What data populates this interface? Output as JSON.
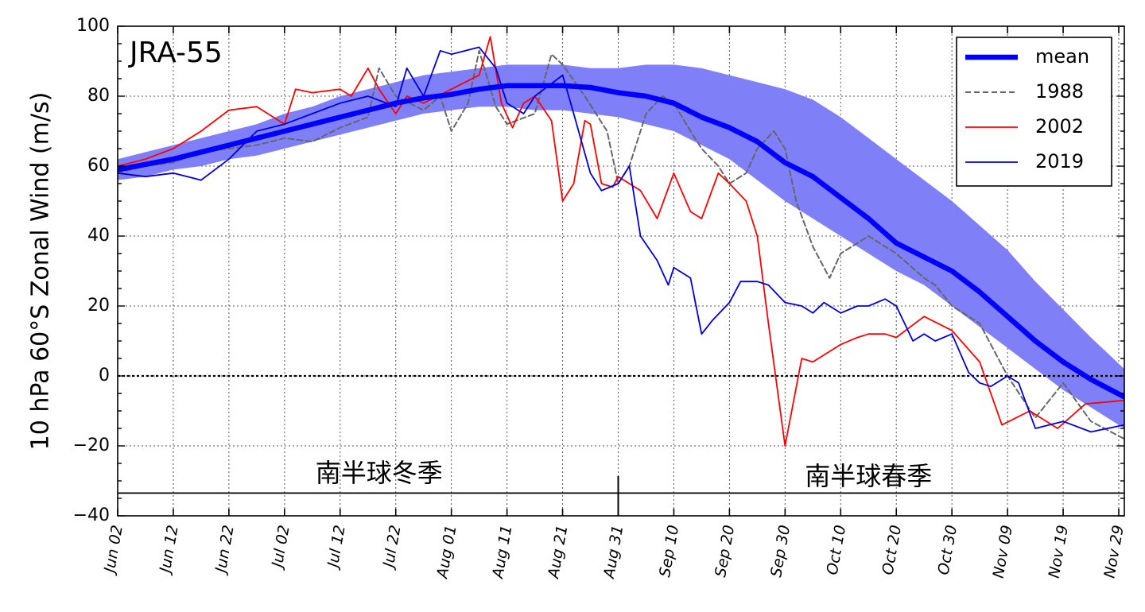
{
  "chart_data": {
    "type": "line",
    "title": "",
    "panel_label": "JRA-55",
    "ylabel": "10 hPa 60°S Zonal Wind (m/s)",
    "xlabel": "",
    "x_unit": "day_of_year_from_Jun_01",
    "xlim": [
      1,
      182
    ],
    "ylim": [
      -40,
      100
    ],
    "y_ticks": [
      -40,
      -20,
      0,
      20,
      40,
      60,
      80,
      100
    ],
    "y_tick_labels": [
      "−40",
      "−20",
      "0",
      "20",
      "40",
      "60",
      "80",
      "100"
    ],
    "x_ticks": [
      1,
      11,
      21,
      31,
      41,
      51,
      61,
      71,
      81,
      91,
      101,
      111,
      121,
      131,
      141,
      151,
      161,
      171,
      181
    ],
    "x_tick_labels": [
      "Jun 02",
      "Jun 12",
      "Jun 22",
      "Jul 02",
      "Jul 12",
      "Jul 22",
      "Aug 01",
      "Aug 11",
      "Aug 21",
      "Aug 31",
      "Sep 10",
      "Sep 20",
      "Sep 30",
      "Oct 10",
      "Oct 20",
      "Oct 30",
      "Nov 09",
      "Nov 19",
      "Nov 29"
    ],
    "grid": true,
    "zero_line": true,
    "legend": {
      "placement": "top-right"
    },
    "season_labels": {
      "winter": "南半球冬季",
      "spring": "南半球春季",
      "winter_x": 48,
      "spring_x": 136,
      "divider_x": 91,
      "bar_y": -33.5
    },
    "band": {
      "color": "#7f7ff8",
      "x": [
        1,
        6,
        11,
        16,
        21,
        26,
        31,
        36,
        41,
        46,
        51,
        56,
        61,
        66,
        71,
        76,
        81,
        86,
        91,
        96,
        101,
        106,
        111,
        116,
        121,
        126,
        131,
        136,
        141,
        146,
        151,
        156,
        161,
        166,
        171,
        176,
        182
      ],
      "lower": [
        56,
        57,
        59,
        60,
        62,
        63,
        65,
        67,
        69,
        71,
        73,
        75,
        76,
        77,
        77,
        76,
        76,
        75,
        74,
        72,
        70,
        66,
        62,
        56,
        50,
        45,
        40,
        35,
        30,
        26,
        20,
        14,
        8,
        2,
        -4,
        -9,
        -15
      ],
      "upper": [
        62,
        64,
        66,
        68,
        70,
        72,
        75,
        77,
        80,
        82,
        84,
        86,
        87,
        88,
        89,
        89,
        89,
        88,
        88,
        89,
        89,
        88,
        86,
        84,
        82,
        79,
        74,
        68,
        62,
        56,
        50,
        43,
        36,
        27,
        19,
        11,
        2
      ]
    },
    "series": [
      {
        "name": "mean",
        "color": "#0000ff",
        "style": "thick",
        "x": [
          1,
          6,
          11,
          16,
          21,
          26,
          31,
          36,
          41,
          46,
          51,
          56,
          61,
          66,
          71,
          76,
          81,
          86,
          91,
          96,
          101,
          106,
          111,
          116,
          121,
          126,
          131,
          136,
          141,
          146,
          151,
          156,
          161,
          166,
          171,
          176,
          182
        ],
        "y": [
          59,
          60.5,
          62,
          64,
          66,
          68,
          70,
          72,
          74,
          76,
          78,
          79.5,
          80.5,
          82,
          83,
          83,
          83,
          82.5,
          81,
          80,
          78,
          74,
          71,
          67,
          61,
          57,
          51,
          45,
          38,
          34,
          30,
          24,
          17,
          10,
          4,
          -1,
          -6
        ]
      },
      {
        "name": "1988",
        "color": "#666666",
        "style": "dashed",
        "x": [
          1,
          6,
          11,
          16,
          21,
          26,
          31,
          36,
          41,
          46,
          48,
          51,
          56,
          59,
          61,
          64,
          66,
          69,
          71,
          76,
          79,
          81,
          85,
          89,
          91,
          93,
          96,
          99,
          101,
          104,
          106,
          109,
          111,
          114,
          116,
          119,
          121,
          123,
          126,
          129,
          131,
          136,
          141,
          146,
          148,
          151,
          156,
          161,
          166,
          171,
          176,
          182
        ],
        "y": [
          58,
          60,
          61,
          64,
          65,
          66,
          68,
          67,
          71,
          74,
          88,
          80,
          76,
          80,
          70,
          78,
          93,
          77,
          72,
          75,
          92,
          89,
          80,
          70,
          55,
          60,
          75,
          80,
          78,
          70,
          65,
          60,
          55,
          58,
          65,
          70,
          65,
          50,
          37,
          28,
          35,
          40,
          35,
          28,
          26,
          20,
          15,
          0,
          -12,
          -2,
          -13,
          -18
        ]
      },
      {
        "name": "2002",
        "color": "#ff0000",
        "style": "solid",
        "x": [
          1,
          6,
          11,
          16,
          21,
          26,
          31,
          33,
          36,
          41,
          43,
          46,
          48,
          51,
          53,
          56,
          61,
          66,
          68,
          70,
          72,
          74,
          76,
          79,
          81,
          83,
          85,
          86,
          88,
          90,
          91,
          93,
          95,
          98,
          101,
          104,
          106,
          109,
          111,
          114,
          116,
          118,
          121,
          124,
          126,
          128,
          131,
          134,
          136,
          139,
          141,
          146,
          151,
          156,
          160,
          165,
          170,
          175,
          182
        ],
        "y": [
          60,
          62,
          65,
          70,
          76,
          77,
          72,
          82,
          81,
          82,
          80,
          88,
          82,
          75,
          80,
          78,
          82,
          86,
          97,
          78,
          71,
          78,
          80,
          73,
          50,
          55,
          73,
          72,
          55,
          54,
          57,
          55,
          53,
          45,
          58,
          47,
          45,
          58,
          55,
          50,
          40,
          15,
          -20,
          5,
          4,
          6,
          9,
          11,
          12,
          12,
          11,
          17,
          13,
          4,
          -14,
          -10,
          -15,
          -8,
          -7
        ]
      },
      {
        "name": "2019",
        "color": "#0000dd",
        "style": "solid",
        "x": [
          1,
          6,
          11,
          16,
          21,
          26,
          31,
          36,
          41,
          46,
          51,
          53,
          56,
          59,
          61,
          66,
          69,
          71,
          74,
          76,
          81,
          83,
          86,
          88,
          91,
          93,
          95,
          98,
          100,
          101,
          104,
          106,
          108,
          111,
          113,
          116,
          118,
          121,
          124,
          126,
          128,
          131,
          134,
          136,
          139,
          141,
          144,
          146,
          148,
          151,
          154,
          156,
          158,
          161,
          163,
          166,
          171,
          176,
          182
        ],
        "y": [
          58,
          57,
          58,
          56,
          62,
          70,
          72,
          75,
          78,
          80,
          77,
          88,
          80,
          93,
          92,
          94,
          88,
          78,
          75,
          80,
          86,
          75,
          58,
          53,
          55,
          60,
          40,
          33,
          26,
          31,
          28,
          12,
          16,
          21,
          27,
          27,
          26,
          21,
          20,
          18,
          21,
          18,
          20,
          20,
          22,
          20,
          10,
          12,
          10,
          12,
          1,
          -2,
          -3,
          0,
          -2,
          -15,
          -13,
          -16,
          -14
        ]
      }
    ]
  }
}
